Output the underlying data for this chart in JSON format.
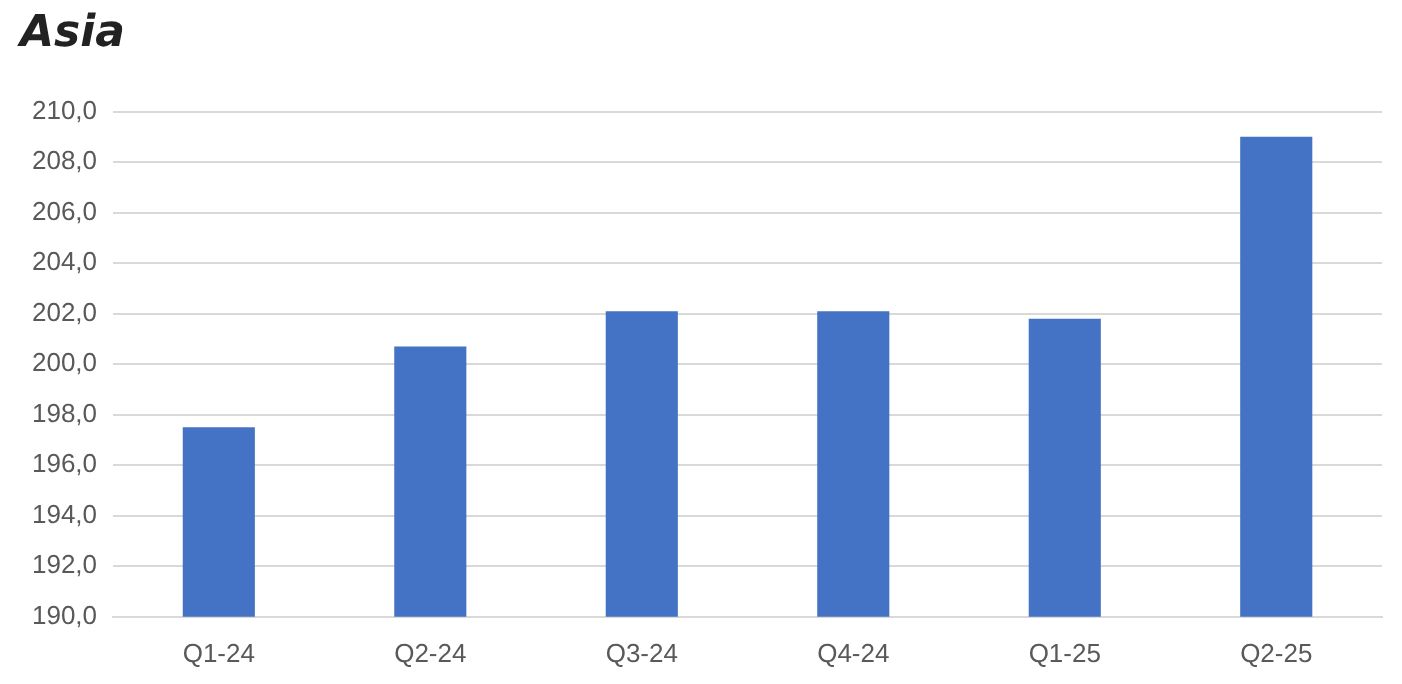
{
  "chart_data": {
    "type": "bar",
    "title": "Asia",
    "categories": [
      "Q1-24",
      "Q2-24",
      "Q3-24",
      "Q4-24",
      "Q1-25",
      "Q2-25"
    ],
    "values": [
      197.5,
      200.7,
      202.1,
      202.1,
      201.8,
      209.0
    ],
    "color": "#4472c4",
    "ylim": [
      190,
      210
    ],
    "yticks": [
      {
        "value": 190,
        "label": "190,0"
      },
      {
        "value": 192,
        "label": "192,0"
      },
      {
        "value": 194,
        "label": "194,0"
      },
      {
        "value": 196,
        "label": "196,0"
      },
      {
        "value": 198,
        "label": "198,0"
      },
      {
        "value": 200,
        "label": "200,0"
      },
      {
        "value": 202,
        "label": "202,0"
      },
      {
        "value": 204,
        "label": "204,0"
      },
      {
        "value": 206,
        "label": "206,0"
      },
      {
        "value": 208,
        "label": "208,0"
      },
      {
        "value": 210,
        "label": "210,0"
      }
    ],
    "grid": "y",
    "legend": false
  }
}
